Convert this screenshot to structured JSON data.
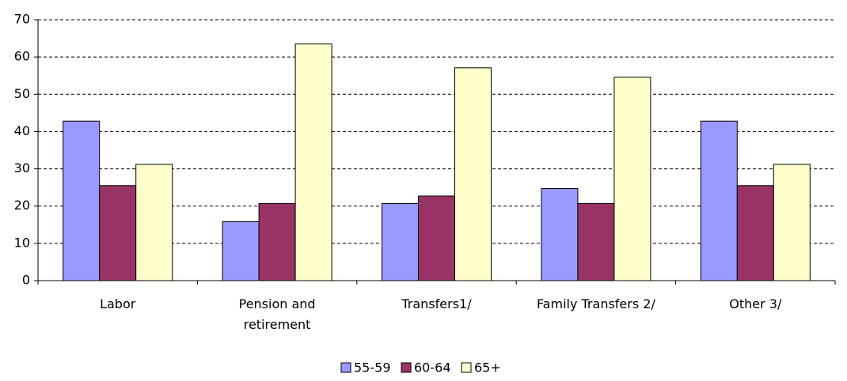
{
  "chart_data": {
    "type": "bar",
    "categories": [
      "Labor",
      "Pension and retirement",
      "Transfers1/",
      "Family Transfers 2/",
      "Other 3/"
    ],
    "series": [
      {
        "name": "55-59",
        "color": "#9999ff",
        "values": [
          42.8,
          15.8,
          20.7,
          24.7,
          42.8
        ]
      },
      {
        "name": "60-64",
        "color": "#993366",
        "values": [
          25.5,
          20.7,
          22.7,
          20.7,
          25.5
        ]
      },
      {
        "name": "65+",
        "color": "#ffffcc",
        "values": [
          31.2,
          63.5,
          57.1,
          54.6,
          31.2
        ]
      }
    ],
    "ylim": [
      0,
      70
    ],
    "yticks": [
      0,
      10,
      20,
      30,
      40,
      50,
      60,
      70
    ],
    "grid": true,
    "legend": "bottom"
  }
}
